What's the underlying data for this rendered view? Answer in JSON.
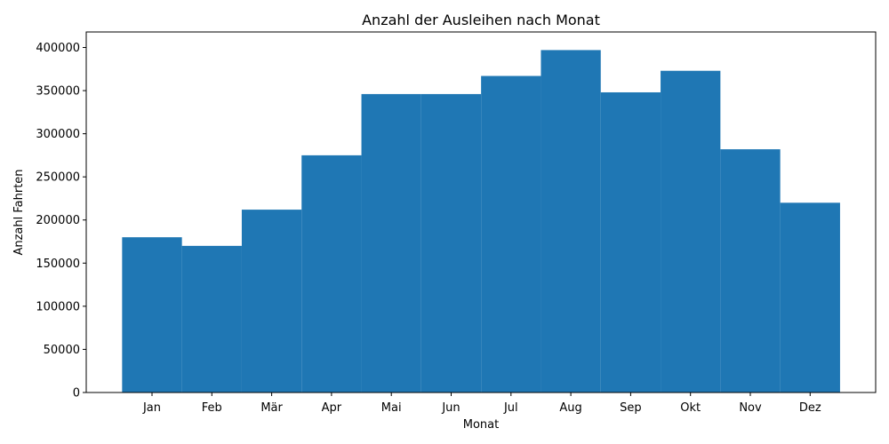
{
  "chart_data": {
    "type": "bar",
    "title": "Anzahl der Ausleihen nach Monat",
    "xlabel": "Monat",
    "ylabel": "Anzahl Fahrten",
    "categories": [
      "Jan",
      "Feb",
      "Mär",
      "Apr",
      "Mai",
      "Jun",
      "Jul",
      "Aug",
      "Sep",
      "Okt",
      "Nov",
      "Dez"
    ],
    "values": [
      180000,
      170000,
      212000,
      275000,
      346000,
      346000,
      367000,
      397000,
      348000,
      373000,
      282000,
      220000
    ],
    "ylim": [
      0,
      418000
    ],
    "yticks": [
      "0",
      "50000",
      "100000",
      "150000",
      "200000",
      "250000",
      "300000",
      "350000",
      "400000"
    ],
    "grid": false,
    "legend": "none",
    "bar_color": "#1f77b4"
  }
}
